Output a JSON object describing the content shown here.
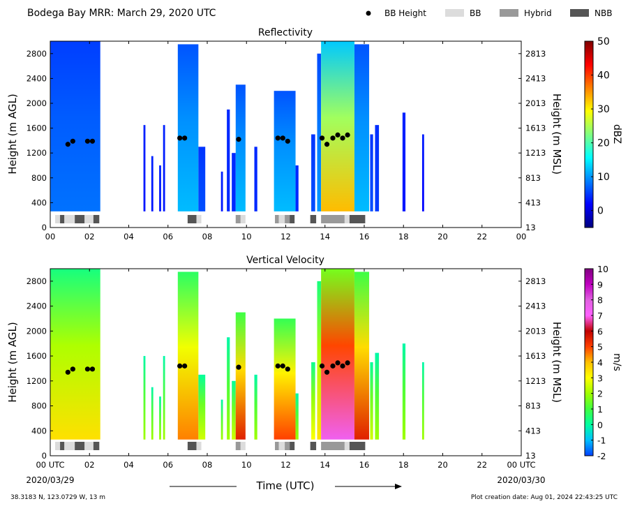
{
  "figure": {
    "title": "Bodega Bay MRR:  March 29, 2020 UTC",
    "location": "38.3183 N, 123.0729 W, 13 m",
    "creation_date": "Plot creation date: Aug 01, 2024 22:43:25 UTC",
    "xlabel": "Time (UTC)",
    "date_start": "2020/03/29",
    "date_end": "2020/03/30"
  },
  "legend": [
    {
      "label": "BB Height",
      "marker": "dot",
      "color": "#000000"
    },
    {
      "label": "BB",
      "marker": "rect",
      "color": "#dcdcdc"
    },
    {
      "label": "Hybrid",
      "marker": "rect",
      "color": "#999999"
    },
    {
      "label": "NBB",
      "marker": "rect",
      "color": "#555555"
    }
  ],
  "chart_data": [
    {
      "type": "heatmap",
      "title": "Reflectivity",
      "ylabel": "Height (m AGL)",
      "ylabel_right": "Height (m MSL)",
      "xlim": [
        0,
        24
      ],
      "ylim": [
        0,
        3000
      ],
      "x_ticks": [
        "00",
        "02",
        "04",
        "06",
        "08",
        "10",
        "12",
        "14",
        "16",
        "18",
        "20",
        "22",
        "00"
      ],
      "y_ticks": [
        0,
        400,
        800,
        1200,
        1600,
        2000,
        2400,
        2800
      ],
      "y_ticks_right": [
        13,
        413,
        813,
        1213,
        1613,
        2013,
        2413,
        2813
      ],
      "colorbar": {
        "label": "dBZ",
        "min": -5,
        "max": 50,
        "ticks": [
          0,
          10,
          20,
          30,
          40,
          50
        ],
        "colors": [
          "#00007f",
          "#0000ff",
          "#0080ff",
          "#00ffff",
          "#80ff80",
          "#ffff00",
          "#ff8000",
          "#ff0000",
          "#7f0000"
        ]
      },
      "bb_height": {
        "x": [
          0.9,
          1.15,
          1.9,
          2.15,
          6.6,
          6.85,
          9.6,
          11.6,
          11.85,
          12.1,
          13.85,
          14.1,
          14.4,
          14.65,
          14.9,
          15.15
        ],
        "y": [
          1340,
          1390,
          1390,
          1390,
          1440,
          1440,
          1420,
          1440,
          1440,
          1390,
          1440,
          1340,
          1440,
          1490,
          1440,
          1490
        ]
      },
      "rain_type": [
        {
          "start": 0.25,
          "end": 0.5,
          "type": "BB"
        },
        {
          "start": 0.5,
          "end": 0.72,
          "type": "NBB"
        },
        {
          "start": 0.72,
          "end": 1.25,
          "type": "BB"
        },
        {
          "start": 1.25,
          "end": 1.75,
          "type": "NBB"
        },
        {
          "start": 1.75,
          "end": 2.2,
          "type": "BB"
        },
        {
          "start": 2.2,
          "end": 2.5,
          "type": "NBB"
        },
        {
          "start": 7.0,
          "end": 7.45,
          "type": "NBB"
        },
        {
          "start": 7.45,
          "end": 7.7,
          "type": "BB"
        },
        {
          "start": 9.45,
          "end": 9.7,
          "type": "Hybrid"
        },
        {
          "start": 9.7,
          "end": 9.95,
          "type": "BB"
        },
        {
          "start": 11.45,
          "end": 11.65,
          "type": "Hybrid"
        },
        {
          "start": 11.65,
          "end": 11.95,
          "type": "BB"
        },
        {
          "start": 11.95,
          "end": 12.2,
          "type": "Hybrid"
        },
        {
          "start": 12.2,
          "end": 12.45,
          "type": "NBB"
        },
        {
          "start": 13.25,
          "end": 13.55,
          "type": "NBB"
        },
        {
          "start": 13.8,
          "end": 15.0,
          "type": "Hybrid"
        },
        {
          "start": 15.0,
          "end": 15.25,
          "type": "BB"
        },
        {
          "start": 15.25,
          "end": 16.05,
          "type": "NBB"
        }
      ],
      "echoes": [
        {
          "start": 0.0,
          "end": 2.55,
          "top": 3000,
          "level": 8
        },
        {
          "start": 4.75,
          "end": 4.85,
          "top": 1650,
          "level": 3
        },
        {
          "start": 5.15,
          "end": 5.25,
          "top": 1150,
          "level": 3
        },
        {
          "start": 5.55,
          "end": 5.65,
          "top": 1000,
          "level": 3
        },
        {
          "start": 5.75,
          "end": 5.85,
          "top": 1650,
          "level": 3
        },
        {
          "start": 6.5,
          "end": 7.55,
          "top": 2950,
          "level": 12
        },
        {
          "start": 7.55,
          "end": 7.9,
          "top": 1300,
          "level": 6
        },
        {
          "start": 8.7,
          "end": 8.8,
          "top": 900,
          "level": 3
        },
        {
          "start": 9.0,
          "end": 9.15,
          "top": 1900,
          "level": 4
        },
        {
          "start": 9.25,
          "end": 9.45,
          "top": 1200,
          "level": 4
        },
        {
          "start": 9.45,
          "end": 9.95,
          "top": 2300,
          "level": 12
        },
        {
          "start": 10.4,
          "end": 10.55,
          "top": 1300,
          "level": 4
        },
        {
          "start": 11.4,
          "end": 12.5,
          "top": 2200,
          "level": 12
        },
        {
          "start": 12.5,
          "end": 12.65,
          "top": 1000,
          "level": 4
        },
        {
          "start": 13.3,
          "end": 13.5,
          "top": 1500,
          "level": 6
        },
        {
          "start": 13.6,
          "end": 13.8,
          "top": 2800,
          "level": 10
        },
        {
          "start": 13.8,
          "end": 15.5,
          "top": 3000,
          "level": 33
        },
        {
          "start": 15.5,
          "end": 16.25,
          "top": 2950,
          "level": 12
        },
        {
          "start": 16.3,
          "end": 16.45,
          "top": 1500,
          "level": 6
        },
        {
          "start": 16.55,
          "end": 16.75,
          "top": 1650,
          "level": 5
        },
        {
          "start": 17.95,
          "end": 18.1,
          "top": 1850,
          "level": 3
        },
        {
          "start": 18.95,
          "end": 19.05,
          "top": 1500,
          "level": 2
        }
      ]
    },
    {
      "type": "heatmap",
      "title": "Vertical Velocity",
      "ylabel": "Height (m AGL)",
      "ylabel_right": "Height (m MSL)",
      "xlim": [
        0,
        24
      ],
      "ylim": [
        0,
        3000
      ],
      "x_ticks": [
        "00 UTC",
        "02",
        "04",
        "06",
        "08",
        "10",
        "12",
        "14",
        "16",
        "18",
        "20",
        "22",
        "00 UTC"
      ],
      "y_ticks": [
        0,
        400,
        800,
        1200,
        1600,
        2000,
        2400,
        2800
      ],
      "y_ticks_right": [
        13,
        413,
        813,
        1213,
        1613,
        2013,
        2413,
        2813
      ],
      "colorbar": {
        "label": "m/s",
        "min": -2,
        "max": 10,
        "ticks": [
          -2,
          -1,
          0,
          1,
          2,
          3,
          4,
          5,
          6,
          7,
          8,
          9,
          10
        ],
        "colors": [
          "#0040ff",
          "#00c0ff",
          "#00ffa0",
          "#40ff40",
          "#a0ff00",
          "#ffff00",
          "#ffc000",
          "#ff4000",
          "#c00000",
          "#ff60ff",
          "#e060e0",
          "#c000c0",
          "#800080"
        ]
      },
      "bb_height": {
        "x": [
          0.9,
          1.15,
          1.9,
          2.15,
          6.6,
          6.85,
          9.6,
          11.6,
          11.85,
          12.1,
          13.85,
          14.1,
          14.4,
          14.65,
          14.9,
          15.15
        ],
        "y": [
          1340,
          1390,
          1390,
          1390,
          1440,
          1440,
          1420,
          1440,
          1440,
          1390,
          1440,
          1340,
          1440,
          1490,
          1440,
          1490
        ]
      },
      "rain_type": [
        {
          "start": 0.25,
          "end": 0.5,
          "type": "BB"
        },
        {
          "start": 0.5,
          "end": 0.72,
          "type": "NBB"
        },
        {
          "start": 0.72,
          "end": 1.25,
          "type": "BB"
        },
        {
          "start": 1.25,
          "end": 1.75,
          "type": "NBB"
        },
        {
          "start": 1.75,
          "end": 2.2,
          "type": "BB"
        },
        {
          "start": 2.2,
          "end": 2.5,
          "type": "NBB"
        },
        {
          "start": 7.0,
          "end": 7.45,
          "type": "NBB"
        },
        {
          "start": 7.45,
          "end": 7.7,
          "type": "BB"
        },
        {
          "start": 9.45,
          "end": 9.7,
          "type": "Hybrid"
        },
        {
          "start": 9.7,
          "end": 9.95,
          "type": "BB"
        },
        {
          "start": 11.45,
          "end": 11.65,
          "type": "Hybrid"
        },
        {
          "start": 11.65,
          "end": 11.95,
          "type": "BB"
        },
        {
          "start": 11.95,
          "end": 12.2,
          "type": "Hybrid"
        },
        {
          "start": 12.2,
          "end": 12.45,
          "type": "NBB"
        },
        {
          "start": 13.25,
          "end": 13.55,
          "type": "NBB"
        },
        {
          "start": 13.8,
          "end": 15.0,
          "type": "Hybrid"
        },
        {
          "start": 15.0,
          "end": 15.25,
          "type": "BB"
        },
        {
          "start": 15.25,
          "end": 16.05,
          "type": "NBB"
        }
      ],
      "echoes": [
        {
          "start": 0.0,
          "end": 2.55,
          "top": 3000,
          "level": 3.5
        },
        {
          "start": 4.75,
          "end": 4.85,
          "top": 1600,
          "level": 2
        },
        {
          "start": 5.15,
          "end": 5.25,
          "top": 1100,
          "level": 2
        },
        {
          "start": 5.55,
          "end": 5.65,
          "top": 950,
          "level": 2
        },
        {
          "start": 5.75,
          "end": 5.85,
          "top": 1600,
          "level": 2
        },
        {
          "start": 6.5,
          "end": 7.55,
          "top": 2950,
          "level": 4.5
        },
        {
          "start": 7.55,
          "end": 7.9,
          "top": 1300,
          "level": 2.5
        },
        {
          "start": 8.7,
          "end": 8.8,
          "top": 900,
          "level": 2
        },
        {
          "start": 9.0,
          "end": 9.15,
          "top": 1900,
          "level": 2
        },
        {
          "start": 9.25,
          "end": 9.45,
          "top": 1200,
          "level": 2.5
        },
        {
          "start": 9.45,
          "end": 9.95,
          "top": 2300,
          "level": 5.5
        },
        {
          "start": 10.4,
          "end": 10.55,
          "top": 1300,
          "level": 2
        },
        {
          "start": 11.4,
          "end": 12.5,
          "top": 2200,
          "level": 5
        },
        {
          "start": 12.5,
          "end": 12.65,
          "top": 1000,
          "level": 2
        },
        {
          "start": 13.3,
          "end": 13.5,
          "top": 1500,
          "level": 3
        },
        {
          "start": 13.6,
          "end": 13.8,
          "top": 2800,
          "level": 3.5
        },
        {
          "start": 13.8,
          "end": 15.5,
          "top": 3000,
          "level": 7.5
        },
        {
          "start": 15.5,
          "end": 16.25,
          "top": 2950,
          "level": 5.5
        },
        {
          "start": 16.3,
          "end": 16.45,
          "top": 1500,
          "level": 2.5
        },
        {
          "start": 16.55,
          "end": 16.75,
          "top": 1650,
          "level": 2
        },
        {
          "start": 17.95,
          "end": 18.1,
          "top": 1800,
          "level": 2
        },
        {
          "start": 18.95,
          "end": 19.05,
          "top": 1500,
          "level": 2
        }
      ]
    }
  ]
}
